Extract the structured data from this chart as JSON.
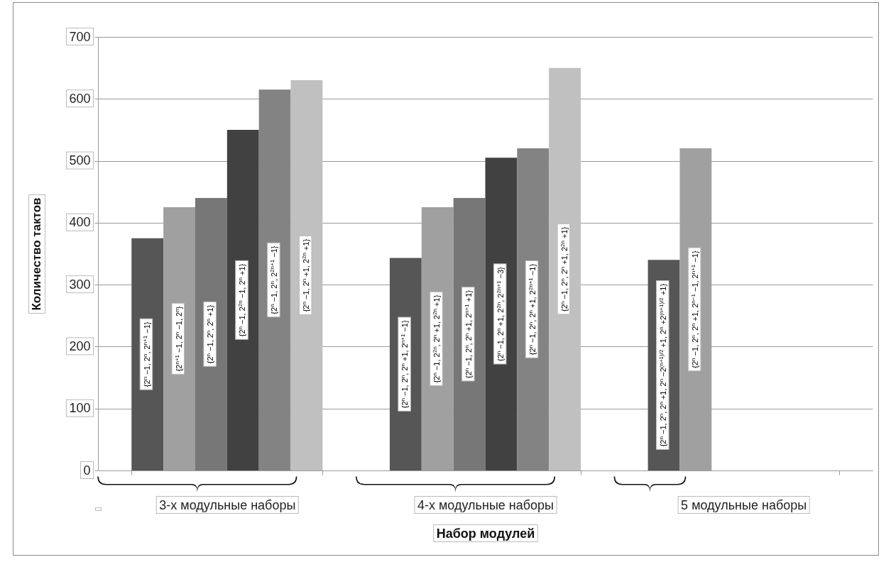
{
  "chart_data": {
    "type": "bar",
    "xlabel": "Набор модулей",
    "ylabel": "Количество тактов",
    "categories": [
      "3-х модульные наборы",
      "4-х модульные наборы",
      "5 модульные наборы"
    ],
    "series": [
      {
        "color": "#565656",
        "values": [
          375,
          343,
          340
        ],
        "value_labels": [
          "{2$^{n}$ −1, 2$^{n}$, 2$^{n+1}$ −1}",
          "{2$^{n}$ −1, 2$^{n}$, 2$^{n}$ +1, 2$^{n+1}$ −1}",
          "{2$^{n}$ −1, 2$^{n}$, 2$^{n}$ +1, 2$^{n}$ −2$^{(n+1)/2}$ +1, 2$^{n}$ +2$^{(n+1)/2}$ +1}"
        ]
      },
      {
        "color": "#a0a0a0",
        "values": [
          425,
          425,
          520
        ],
        "value_labels": [
          "{2$^{n+1}$ −1, 2$^{n}$ −1, 2$^{n}$}",
          "{2$^{n}$ −1, 2$^{2n}$, 2$^{n}$ +1, 2$^{2n}$ +1}",
          "{2$^{n}$ −1, 2$^{n}$, 2$^{n}$ +1, 2$^{n−1}$ −1, 2$^{n+1}$ −1}"
        ]
      },
      {
        "color": "#777777",
        "values": [
          440,
          440,
          null
        ],
        "value_labels": [
          "{2$^{n}$ −1, 2$^{n}$, 2$^{n}$ +1}",
          "{2$^{n}$ −1, 2$^{n}$, 2$^{n}$ +1, 2$^{n+1}$ +1}",
          null
        ]
      },
      {
        "color": "#414141",
        "values": [
          550,
          505,
          null
        ],
        "value_labels": [
          "{2$^{n}$ −1, 2$^{2n}$ −1, 2$^{n}$ +1}",
          "{2$^{n}$ −1, 2$^{n}$ +1, 2$^{2n}$, 2$^{2n+1}$ −3}",
          null
        ]
      },
      {
        "color": "#838383",
        "values": [
          615,
          520,
          null
        ],
        "value_labels": [
          "{2$^{n}$ −1, 2$^{n}$, 2$^{2n+1}$ −1}",
          "{2$^{n}$ −1, 2$^{n}$, 2$^{n}$ +1, 2$^{2n+1}$ −1}",
          null
        ]
      },
      {
        "color": "#c0c0c0",
        "values": [
          630,
          650,
          null
        ],
        "value_labels": [
          "{2$^{n}$ −1, 2$^{n}$ +1, 2$^{2n}$ +1}",
          "{2$^{n}$ −1, 2$^{n}$, 2$^{n}$ +1, 2$^{2n}$ +1}",
          null
        ]
      }
    ],
    "ylim": [
      0,
      700
    ],
    "yticks": [
      0,
      100,
      200,
      300,
      400,
      500,
      600,
      700
    ],
    "grid": "y",
    "legend": false
  }
}
